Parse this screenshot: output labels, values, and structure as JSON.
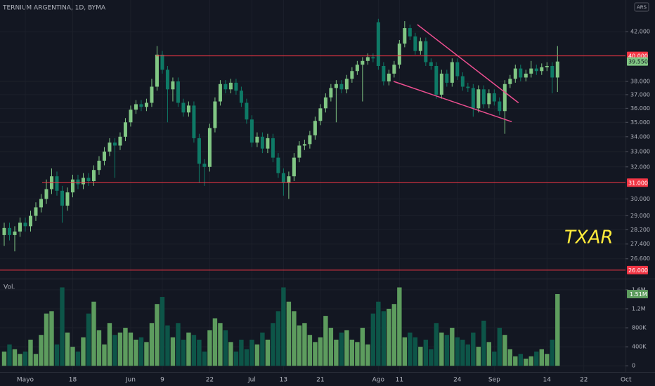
{
  "chart_data": {
    "type": "candlestick",
    "title": "TERNIUM ARGENTINA, 1D, BYMA",
    "currency": "ARS",
    "symbol": "TXAR",
    "volume_label": "Vol.",
    "log_scale": true,
    "grid": true,
    "up_color": "#81c784",
    "down_color": "#0e7a66",
    "up_volume_color": "#5d9c5e",
    "down_volume_color": "#0d5548",
    "open": [
      27.9,
      28.3,
      27.9,
      28.1,
      28.6,
      28.4,
      29.0,
      29.5,
      30.0,
      30.6,
      31.4,
      30.5,
      29.6,
      30.4,
      31.2,
      30.9,
      31.3,
      31.1,
      31.8,
      32.4,
      33.0,
      33.6,
      33.4,
      34.0,
      35.0,
      35.9,
      36.3,
      36.1,
      36.4,
      37.6,
      40.1,
      38.9,
      37.4,
      38.0,
      36.4,
      35.7,
      36.2,
      33.9,
      32.2,
      32.0,
      34.6,
      36.5,
      37.8,
      37.4,
      37.9,
      37.3,
      36.4,
      35.2,
      33.6,
      34.0,
      33.2,
      33.9,
      32.6,
      31.6,
      31.0,
      31.4,
      32.6,
      33.4,
      33.5,
      34.1,
      35.1,
      36.0,
      36.8,
      37.5,
      37.8,
      37.4,
      38.2,
      38.8,
      39.3,
      39.6,
      39.9,
      42.8,
      39.2,
      38.0,
      38.6,
      39.3,
      41.0,
      42.3,
      41.6,
      40.4,
      41.2,
      39.5,
      39.2,
      37.0,
      38.6,
      37.9,
      39.5,
      38.4,
      37.6,
      37.5,
      36.0,
      37.4,
      36.3,
      37.1,
      36.5,
      35.8,
      37.8,
      38.2,
      39.0,
      38.3,
      38.6,
      39.0,
      38.8,
      39.1,
      39.2,
      38.3
    ],
    "high": [
      28.6,
      28.6,
      28.4,
      28.9,
      28.9,
      29.3,
      29.8,
      30.3,
      31.2,
      31.9,
      31.7,
      30.8,
      30.7,
      31.5,
      31.5,
      31.6,
      31.6,
      32.1,
      32.7,
      33.3,
      33.9,
      33.9,
      34.3,
      35.3,
      36.2,
      36.6,
      36.6,
      36.7,
      38.2,
      40.8,
      40.4,
      39.2,
      38.3,
      38.3,
      36.7,
      36.5,
      36.5,
      34.2,
      32.5,
      34.9,
      36.8,
      38.1,
      38.1,
      38.2,
      38.2,
      37.6,
      36.7,
      35.5,
      34.3,
      34.3,
      34.2,
      34.2,
      32.9,
      31.9,
      31.7,
      32.9,
      33.7,
      33.8,
      34.4,
      35.4,
      36.3,
      37.1,
      37.8,
      38.1,
      38.1,
      38.5,
      39.1,
      39.6,
      39.9,
      40.2,
      40.2,
      43.1,
      39.5,
      38.9,
      39.6,
      41.3,
      42.9,
      42.6,
      41.9,
      41.5,
      41.5,
      39.8,
      39.5,
      38.9,
      38.9,
      39.8,
      39.8,
      38.7,
      37.9,
      37.8,
      37.7,
      37.7,
      37.4,
      37.4,
      36.8,
      38.1,
      38.5,
      39.3,
      39.3,
      38.9,
      39.6,
      39.3,
      39.4,
      39.5,
      39.5,
      40.8
    ],
    "low": [
      27.3,
      27.6,
      27.0,
      27.8,
      28.1,
      28.1,
      28.7,
      29.2,
      29.7,
      30.3,
      30.2,
      28.6,
      29.3,
      30.1,
      30.6,
      30.6,
      30.8,
      30.8,
      31.5,
      32.1,
      32.7,
      31.3,
      33.1,
      33.7,
      34.7,
      35.6,
      35.8,
      35.8,
      36.1,
      37.3,
      38.6,
      35.0,
      36.5,
      36.1,
      35.4,
      35.4,
      33.6,
      31.0,
      30.8,
      31.7,
      34.3,
      36.2,
      37.1,
      37.1,
      37.0,
      36.1,
      34.9,
      33.3,
      33.3,
      32.9,
      32.9,
      32.3,
      31.3,
      30.2,
      30.0,
      31.1,
      32.3,
      33.1,
      33.2,
      33.8,
      34.8,
      35.7,
      36.5,
      35.0,
      37.1,
      37.1,
      37.9,
      38.5,
      36.5,
      39.3,
      39.5,
      38.9,
      37.7,
      37.7,
      38.3,
      39.0,
      40.7,
      41.3,
      40.1,
      40.1,
      39.2,
      38.9,
      36.7,
      36.7,
      37.6,
      37.6,
      38.1,
      37.3,
      37.2,
      35.4,
      35.7,
      36.0,
      36.0,
      36.2,
      35.5,
      34.2,
      37.5,
      37.9,
      38.0,
      38.0,
      38.3,
      38.5,
      38.5,
      38.8,
      37.1,
      37.2
    ],
    "close": [
      28.3,
      27.9,
      28.1,
      28.6,
      28.4,
      29.0,
      29.5,
      30.0,
      30.6,
      31.4,
      30.5,
      29.6,
      30.4,
      31.2,
      30.9,
      31.3,
      31.1,
      31.8,
      32.4,
      33.0,
      33.6,
      33.4,
      34.0,
      35.0,
      35.9,
      36.3,
      36.1,
      36.4,
      37.6,
      40.1,
      38.9,
      37.4,
      38.0,
      36.4,
      35.7,
      36.2,
      33.9,
      32.2,
      32.0,
      34.6,
      36.5,
      37.8,
      37.4,
      37.9,
      37.3,
      36.4,
      35.2,
      33.6,
      34.0,
      33.2,
      33.9,
      32.6,
      31.6,
      31.0,
      31.4,
      32.6,
      33.4,
      33.5,
      34.1,
      35.1,
      36.0,
      36.8,
      37.5,
      37.8,
      37.4,
      38.2,
      38.8,
      39.3,
      39.6,
      39.9,
      39.8,
      39.2,
      38.0,
      38.6,
      39.3,
      41.0,
      42.3,
      41.6,
      40.4,
      41.2,
      39.5,
      39.2,
      37.0,
      38.6,
      37.9,
      39.5,
      38.4,
      37.6,
      37.5,
      36.0,
      37.4,
      36.3,
      37.1,
      36.5,
      35.8,
      37.8,
      38.2,
      39.0,
      38.3,
      38.6,
      39.0,
      38.8,
      39.1,
      39.2,
      38.3,
      39.55
    ],
    "volume": [
      300000,
      450000,
      350000,
      250000,
      300000,
      550000,
      250000,
      650000,
      1100000,
      1150000,
      450000,
      1650000,
      700000,
      400000,
      300000,
      600000,
      1100000,
      1350000,
      750000,
      450000,
      900000,
      650000,
      700000,
      800000,
      700000,
      550000,
      600000,
      500000,
      900000,
      1300000,
      1450000,
      850000,
      600000,
      900000,
      550000,
      700000,
      650000,
      550000,
      300000,
      750000,
      1000000,
      900000,
      750000,
      500000,
      300000,
      550000,
      350000,
      550000,
      450000,
      700000,
      550000,
      900000,
      1150000,
      1650000,
      1350000,
      1150000,
      850000,
      900000,
      650000,
      500000,
      600000,
      1050000,
      800000,
      550000,
      700000,
      750000,
      550000,
      500000,
      800000,
      450000,
      1100000,
      1350000,
      1150000,
      1200000,
      1300000,
      1650000,
      600000,
      700000,
      600000,
      400000,
      550000,
      350000,
      900000,
      700000,
      650000,
      800000,
      600000,
      550000,
      450000,
      700000,
      400000,
      950000,
      500000,
      300000,
      800000,
      650000,
      350000,
      200000,
      250000,
      150000,
      200000,
      300000,
      350000,
      250000,
      550000,
      1510000
    ],
    "last_price_label": "39.550",
    "last_volume_label": "1.51M",
    "xlim": [
      -0.8,
      117.9
    ],
    "xticks": [
      {
        "value": 4,
        "label": "Mayo"
      },
      {
        "value": 13,
        "label": "18"
      },
      {
        "value": 24,
        "label": "Jun"
      },
      {
        "value": 30,
        "label": "9"
      },
      {
        "value": 39,
        "label": "22"
      },
      {
        "value": 47,
        "label": "Jul"
      },
      {
        "value": 53,
        "label": "13"
      },
      {
        "value": 60,
        "label": "21"
      },
      {
        "value": 71,
        "label": "Ago"
      },
      {
        "value": 75,
        "label": "11"
      },
      {
        "value": 86,
        "label": "24"
      },
      {
        "value": 93,
        "label": "Sep"
      },
      {
        "value": 103,
        "label": "14"
      },
      {
        "value": 110,
        "label": "22"
      },
      {
        "value": 118,
        "label": "Oct"
      }
    ],
    "ylim": [
      25.56,
      44.76
    ],
    "yticks": [
      {
        "value": 42,
        "label": "42.000"
      },
      {
        "value": 38,
        "label": "38.000"
      },
      {
        "value": 37,
        "label": "37.000"
      },
      {
        "value": 36,
        "label": "36.000"
      },
      {
        "value": 35,
        "label": "35.000"
      },
      {
        "value": 34,
        "label": "34.000"
      },
      {
        "value": 33,
        "label": "33.000"
      },
      {
        "value": 32,
        "label": "32.000"
      },
      {
        "value": 30,
        "label": "30.000"
      },
      {
        "value": 29,
        "label": "29.000"
      },
      {
        "value": 28.2,
        "label": "28.200"
      },
      {
        "value": 27.4,
        "label": "27.400"
      },
      {
        "value": 26.6,
        "label": "26.600"
      }
    ],
    "volume_ylim": [
      -130000,
      1820000
    ],
    "volume_yticks": [
      0,
      {
        "value": 400000,
        "label": "400K"
      },
      {
        "value": 800000,
        "label": "800K"
      },
      {
        "value": 1200000,
        "label": "1.2M"
      },
      {
        "value": 1600000,
        "label": "1.6M"
      }
    ],
    "hlines": [
      {
        "value": 40,
        "label": "40.000",
        "start": 28.8
      },
      {
        "value": 31,
        "label": "31.000",
        "start": 7.2
      },
      {
        "value": 26,
        "label": "26.000",
        "start": -0.8
      }
    ],
    "hline_color": "#f23645",
    "trendlines": [
      {
        "x": [
          78.4,
          97.6
        ],
        "y": [
          42.6,
          36.4
        ]
      },
      {
        "x": [
          73.9,
          96.3
        ],
        "y": [
          38.0,
          35.04
        ]
      }
    ],
    "trendline_color": "#ef4f91",
    "symbol_color": "#ffeb3b"
  }
}
